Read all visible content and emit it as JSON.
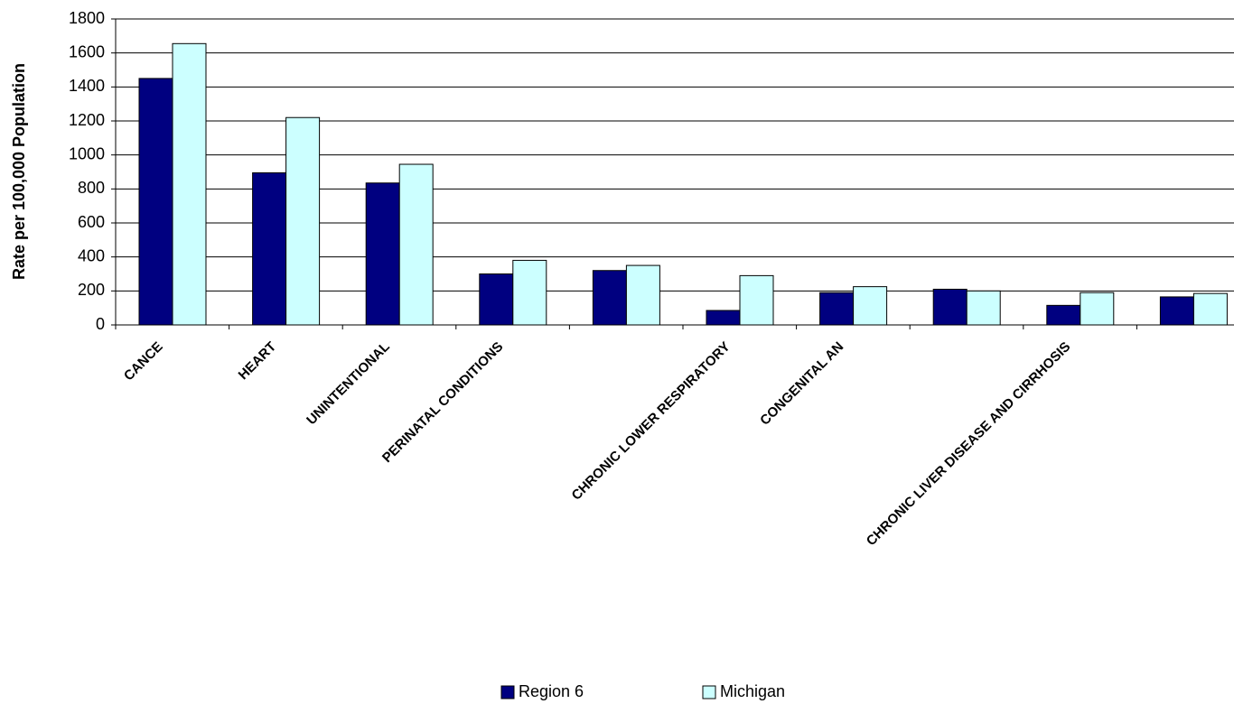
{
  "chart_data": {
    "type": "bar",
    "y_label": "Rate per 100,000 Population",
    "categories": [
      "CANCE",
      "HEART",
      "UNINTENTIONAL",
      "PERINATAL CONDITIONS",
      null,
      "CHRONIC LOWER RESPIRATORY",
      "CONGENITAL AN",
      null,
      "CHRONIC LIVER DISEASE AND CIRRHOSIS",
      null
    ],
    "series": [
      {
        "name": "Region 6",
        "color": "#000080",
        "values": [
          1450,
          895,
          835,
          300,
          320,
          85,
          190,
          210,
          115,
          165
        ]
      },
      {
        "name": "Michigan",
        "color": "#ccffff",
        "values": [
          1655,
          1220,
          945,
          380,
          350,
          290,
          225,
          200,
          190,
          185
        ]
      }
    ],
    "ylim": [
      0,
      1800
    ],
    "yticks": [
      0,
      200,
      400,
      600,
      800,
      1000,
      1200,
      1400,
      1600,
      1800
    ],
    "grid": true
  }
}
